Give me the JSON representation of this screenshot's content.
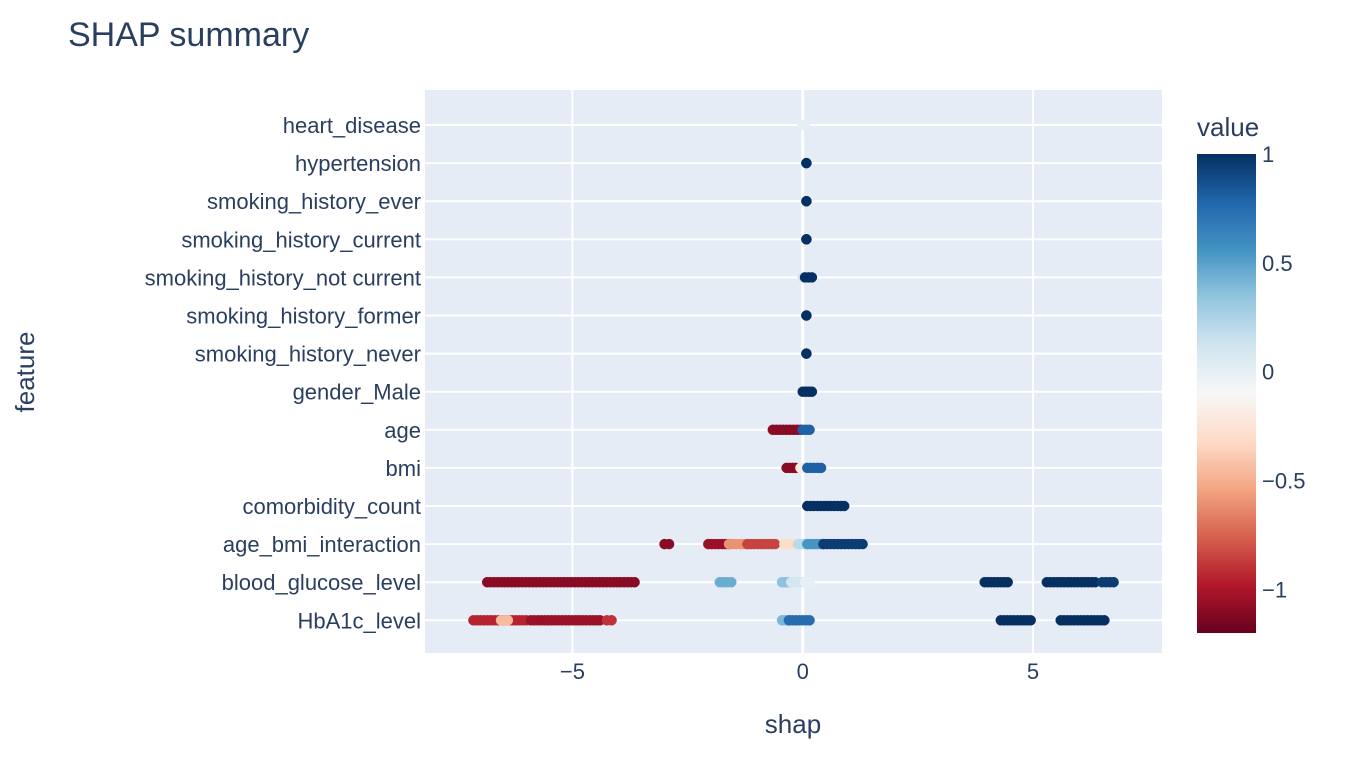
{
  "chart_data": {
    "type": "scatter",
    "title": "SHAP summary",
    "xlabel": "shap",
    "ylabel": "feature",
    "xlim": [
      -8.2,
      7.8
    ],
    "x_ticks": [
      -5,
      0,
      5
    ],
    "x_tick_labels": [
      "−5",
      "0",
      "5"
    ],
    "grid": true,
    "features": [
      "heart_disease",
      "hypertension",
      "smoking_history_ever",
      "smoking_history_current",
      "smoking_history_not current",
      "smoking_history_former",
      "smoking_history_never",
      "gender_Male",
      "age",
      "bmi",
      "comorbidity_count",
      "age_bmi_interaction",
      "blood_glucose_level",
      "HbA1c_level"
    ],
    "colorbar": {
      "title": "value",
      "range": [
        -1.2,
        1
      ],
      "ticks": [
        1,
        0.5,
        0,
        -0.5,
        -1
      ],
      "tick_labels": [
        "1",
        "0.5",
        "0",
        "−0.5",
        "−1"
      ],
      "colorscale": [
        "#67001f",
        "#b2182b",
        "#d6604d",
        "#f4a582",
        "#fddbc7",
        "#f7f7f7",
        "#d1e5f0",
        "#92c5de",
        "#4393c3",
        "#2166ac",
        "#053061"
      ]
    },
    "clusters": [
      {
        "feature": "heart_disease",
        "x0": 0.0,
        "x1": 0.05,
        "value": 0.0
      },
      {
        "feature": "hypertension",
        "x0": 0.08,
        "x1": 0.08,
        "value": 1.0
      },
      {
        "feature": "smoking_history_ever",
        "x0": 0.08,
        "x1": 0.08,
        "value": 1.0
      },
      {
        "feature": "smoking_history_current",
        "x0": 0.08,
        "x1": 0.08,
        "value": 1.0
      },
      {
        "feature": "smoking_history_not current",
        "x0": 0.0,
        "x1": 0.0,
        "value": 0.1
      },
      {
        "feature": "smoking_history_not current",
        "x0": 0.05,
        "x1": 0.2,
        "value": 1.0
      },
      {
        "feature": "smoking_history_former",
        "x0": 0.08,
        "x1": 0.08,
        "value": 1.0
      },
      {
        "feature": "smoking_history_never",
        "x0": 0.08,
        "x1": 0.08,
        "value": 1.0
      },
      {
        "feature": "gender_Male",
        "x0": 0.0,
        "x1": 0.2,
        "value": 1.0
      },
      {
        "feature": "age",
        "x0": -0.65,
        "x1": -0.05,
        "value": -1.1
      },
      {
        "feature": "age",
        "x0": 0.0,
        "x1": 0.15,
        "value": 0.8
      },
      {
        "feature": "bmi",
        "x0": -0.35,
        "x1": -0.15,
        "value": -1.1
      },
      {
        "feature": "bmi",
        "x0": -0.05,
        "x1": 0.05,
        "value": -0.2
      },
      {
        "feature": "bmi",
        "x0": 0.1,
        "x1": 0.4,
        "value": 0.8
      },
      {
        "feature": "comorbidity_count",
        "x0": 0.1,
        "x1": 0.9,
        "value": 1.0
      },
      {
        "feature": "age_bmi_interaction",
        "x0": -3.0,
        "x1": -2.9,
        "value": -1.1
      },
      {
        "feature": "age_bmi_interaction",
        "x0": -2.05,
        "x1": -1.6,
        "value": -1.05
      },
      {
        "feature": "age_bmi_interaction",
        "x0": -1.6,
        "x1": -1.2,
        "value": -0.6
      },
      {
        "feature": "age_bmi_interaction",
        "x0": -1.2,
        "x1": -0.6,
        "value": -0.85
      },
      {
        "feature": "age_bmi_interaction",
        "x0": -0.4,
        "x1": -0.2,
        "value": -0.3
      },
      {
        "feature": "age_bmi_interaction",
        "x0": -0.1,
        "x1": 0.1,
        "value": 0.2
      },
      {
        "feature": "age_bmi_interaction",
        "x0": 0.1,
        "x1": 0.45,
        "value": 0.55
      },
      {
        "feature": "age_bmi_interaction",
        "x0": 0.45,
        "x1": 1.3,
        "value": 0.95
      },
      {
        "feature": "blood_glucose_level",
        "x0": -6.85,
        "x1": -3.65,
        "value": -1.1
      },
      {
        "feature": "blood_glucose_level",
        "x0": -1.8,
        "x1": -1.55,
        "value": 0.45
      },
      {
        "feature": "blood_glucose_level",
        "x0": -0.45,
        "x1": -0.25,
        "value": 0.35
      },
      {
        "feature": "blood_glucose_level",
        "x0": -0.25,
        "x1": 0.05,
        "value": 0.1
      },
      {
        "feature": "blood_glucose_level",
        "x0": 0.05,
        "x1": 0.15,
        "value": 0.0
      },
      {
        "feature": "blood_glucose_level",
        "x0": 3.95,
        "x1": 4.45,
        "value": 1.0
      },
      {
        "feature": "blood_glucose_level",
        "x0": 5.3,
        "x1": 6.35,
        "value": 1.0
      },
      {
        "feature": "blood_glucose_level",
        "x0": 6.5,
        "x1": 6.75,
        "value": 0.95
      },
      {
        "feature": "HbA1c_level",
        "x0": -7.15,
        "x1": -6.0,
        "value": -0.95
      },
      {
        "feature": "HbA1c_level",
        "x0": -6.55,
        "x1": -6.4,
        "value": -0.45
      },
      {
        "feature": "HbA1c_level",
        "x0": -5.9,
        "x1": -4.4,
        "value": -1.05
      },
      {
        "feature": "HbA1c_level",
        "x0": -4.25,
        "x1": -4.15,
        "value": -0.9
      },
      {
        "feature": "HbA1c_level",
        "x0": -0.45,
        "x1": -0.3,
        "value": 0.4
      },
      {
        "feature": "HbA1c_level",
        "x0": -0.3,
        "x1": 0.15,
        "value": 0.75
      },
      {
        "feature": "HbA1c_level",
        "x0": 4.3,
        "x1": 4.95,
        "value": 1.0
      },
      {
        "feature": "HbA1c_level",
        "x0": 5.6,
        "x1": 6.55,
        "value": 1.0
      }
    ]
  }
}
